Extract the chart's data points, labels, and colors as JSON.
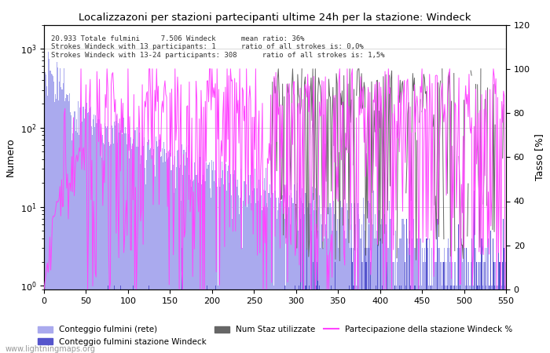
{
  "title": "Localizzazoni per stazioni partecipanti ultime 24h per la stazione: Windeck",
  "ylabel_left": "Numero",
  "ylabel_right": "Tasso [%]",
  "annotation_line1": "20.933 Totale fulmini     7.506 Windeck      mean ratio: 36%",
  "annotation_line2": "Strokes Windeck with 13 participants: 1      ratio of all strokes is: 0,0%",
  "annotation_line3": "Strokes Windeck with 13-24 participants: 308      ratio of all strokes is: 1,5%",
  "xlim": [
    0,
    550
  ],
  "ylim_right": [
    0,
    120
  ],
  "xticks": [
    0,
    50,
    100,
    150,
    200,
    250,
    300,
    350,
    400,
    450,
    500,
    550
  ],
  "yticks_right": [
    0,
    20,
    40,
    60,
    80,
    100,
    120
  ],
  "legend_entries": [
    "Conteggio fulmini (rete)",
    "Conteggio fulmini stazione Windeck",
    "Num Staz utilizzate",
    "Partecipazione della stazione Windeck %"
  ],
  "bar_color_network": "#aaaaee",
  "bar_color_windeck": "#5555cc",
  "line_color_participation": "#ff44ff",
  "line_color_stations": "#666666",
  "watermark": "www.lightningmaps.org",
  "n_bins": 550
}
